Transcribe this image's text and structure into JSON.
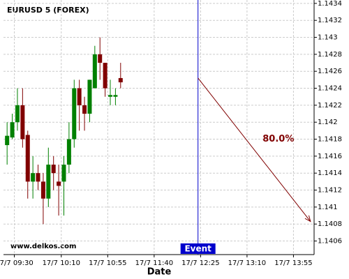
{
  "chart_data": {
    "type": "candlestick",
    "title": "EURUSD 5 (FOREX)",
    "x_label": "Date",
    "watermark": "www.delkos.com",
    "x": [
      0,
      1,
      2,
      3,
      4,
      5,
      6,
      7,
      8,
      9,
      10,
      11,
      12,
      13,
      14,
      15,
      16,
      17,
      18,
      19,
      20,
      21,
      22
    ],
    "open": [
      1.14173,
      1.14182,
      1.142,
      1.1422,
      1.14185,
      1.1413,
      1.1414,
      1.1413,
      1.1411,
      1.1415,
      1.1413,
      1.1413,
      1.1415,
      1.1418,
      1.1424,
      1.1422,
      1.1421,
      1.1424,
      1.1428,
      1.1427,
      1.1423,
      1.1423,
      1.14252
    ],
    "high": [
      1.142,
      1.1421,
      1.1424,
      1.1424,
      1.1419,
      1.1416,
      1.1415,
      1.1414,
      1.1417,
      1.1416,
      1.1415,
      1.1416,
      1.142,
      1.1425,
      1.1425,
      1.1423,
      1.1425,
      1.1429,
      1.143,
      1.1427,
      1.1425,
      1.1424,
      1.1427
    ],
    "low": [
      1.1415,
      1.1418,
      1.1419,
      1.1417,
      1.1411,
      1.1411,
      1.1412,
      1.1408,
      1.141,
      1.1412,
      1.1409,
      1.1409,
      1.1414,
      1.1417,
      1.1419,
      1.1419,
      1.142,
      1.1424,
      1.1425,
      1.1423,
      1.1422,
      1.1422,
      1.1424
    ],
    "close": [
      1.14184,
      1.142,
      1.1422,
      1.1418,
      1.1413,
      1.1414,
      1.1413,
      1.1411,
      1.1415,
      1.1414,
      1.14125,
      1.1415,
      1.1418,
      1.1424,
      1.1422,
      1.1421,
      1.1425,
      1.1428,
      1.1427,
      1.1424,
      1.14232,
      1.14232,
      1.14247
    ],
    "up_color": "#008000",
    "down_color": "#800000",
    "xlim": [
      -0.7,
      59.5
    ],
    "ylim": [
      1.14044,
      1.14344
    ],
    "xticks": [
      {
        "value": 1.4,
        "label": "17/7 09:30"
      },
      {
        "value": 10.5,
        "label": "17/7 10:10"
      },
      {
        "value": 19.5,
        "label": "17/7 10:55"
      },
      {
        "value": 28.5,
        "label": "17/7 11:40"
      },
      {
        "value": 37.5,
        "label": "17/7 12:25"
      },
      {
        "value": 46.5,
        "label": "17/7 13:10"
      },
      {
        "value": 55.5,
        "label": "17/7 13:55"
      }
    ],
    "yticks": [
      1.1406,
      1.1408,
      1.141,
      1.1412,
      1.1414,
      1.1416,
      1.1418,
      1.142,
      1.1422,
      1.1424,
      1.1426,
      1.1428,
      1.143,
      1.1432,
      1.1434
    ],
    "grid": true,
    "event": {
      "label": "Event",
      "x": 37,
      "color": "#0000cc"
    },
    "projection": {
      "label": "80.0%",
      "from": [
        37,
        1.14252
      ],
      "to": [
        58.8,
        1.14083
      ],
      "color": "#800000"
    }
  }
}
